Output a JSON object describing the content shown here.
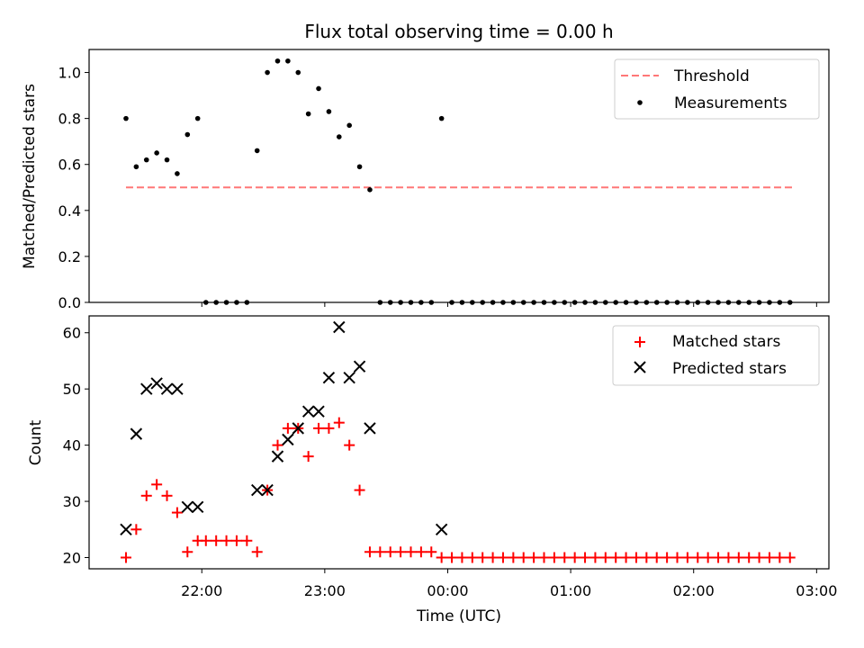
{
  "chart_data": [
    {
      "type": "scatter",
      "title": "Flux total observing time = 0.00 h",
      "ylabel": "Matched/Predicted stars",
      "xlabel": "",
      "xlim": [
        "21:05",
        "03:06"
      ],
      "ylim": [
        0,
        1.1
      ],
      "yticks": [
        0.0,
        0.2,
        0.4,
        0.6,
        0.8,
        1.0
      ],
      "ytick_labels": [
        "0.0",
        "0.2",
        "0.4",
        "0.6",
        "0.8",
        "1.0"
      ],
      "legend": {
        "placement": "top-right"
      },
      "threshold": {
        "name": "Threshold",
        "value": 0.5,
        "x_range": [
          "21:23",
          "02:49"
        ],
        "color": "#ff7777",
        "style": "dashed"
      },
      "series": [
        {
          "name": "Measurements",
          "color": "#000000",
          "marker": "dot",
          "x": [
            "21:23",
            "21:28",
            "21:33",
            "21:38",
            "21:43",
            "21:48",
            "21:53",
            "21:58",
            "22:02",
            "22:07",
            "22:12",
            "22:17",
            "22:22",
            "22:27",
            "22:32",
            "22:37",
            "22:42",
            "22:47",
            "22:52",
            "22:57",
            "23:02",
            "23:07",
            "23:12",
            "23:17",
            "23:22",
            "23:27",
            "23:32",
            "23:37",
            "23:42",
            "23:47",
            "23:52",
            "23:57",
            "00:02",
            "00:07",
            "00:12",
            "00:17",
            "00:22",
            "00:27",
            "00:32",
            "00:37",
            "00:42",
            "00:47",
            "00:52",
            "00:57",
            "01:02",
            "01:07",
            "01:12",
            "01:17",
            "01:22",
            "01:27",
            "01:32",
            "01:37",
            "01:42",
            "01:47",
            "01:52",
            "01:57",
            "02:02",
            "02:07",
            "02:12",
            "02:17",
            "02:22",
            "02:27",
            "02:32",
            "02:37",
            "02:42",
            "02:47"
          ],
          "y": [
            0.8,
            0.59,
            0.62,
            0.65,
            0.62,
            0.56,
            0.73,
            0.8,
            0.0,
            0.0,
            0.0,
            0.0,
            0.0,
            0.66,
            1.0,
            1.05,
            1.05,
            1.0,
            0.82,
            0.93,
            0.83,
            0.72,
            0.77,
            0.59,
            0.49,
            0.0,
            0.0,
            0.0,
            0.0,
            0.0,
            0.0,
            0.8,
            0.0,
            0.0,
            0.0,
            0.0,
            0.0,
            0.0,
            0.0,
            0.0,
            0.0,
            0.0,
            0.0,
            0.0,
            0.0,
            0.0,
            0.0,
            0.0,
            0.0,
            0.0,
            0.0,
            0.0,
            0.0,
            0.0,
            0.0,
            0.0,
            0.0,
            0.0,
            0.0,
            0.0,
            0.0,
            0.0,
            0.0,
            0.0,
            0.0,
            0.0
          ]
        }
      ]
    },
    {
      "type": "scatter",
      "title": "",
      "ylabel": "Count",
      "xlabel": "Time (UTC)",
      "xlim": [
        "21:05",
        "03:06"
      ],
      "ylim": [
        18,
        63
      ],
      "yticks": [
        20,
        30,
        40,
        50,
        60
      ],
      "ytick_labels": [
        "20",
        "30",
        "40",
        "50",
        "60"
      ],
      "xticks": [
        "22:00",
        "23:00",
        "00:00",
        "01:00",
        "02:00",
        "03:00"
      ],
      "xtick_labels": [
        "22:00",
        "23:00",
        "00:00",
        "01:00",
        "02:00",
        "03:00"
      ],
      "legend": {
        "placement": "top-right"
      },
      "series": [
        {
          "name": "Matched stars",
          "color": "#ff0000",
          "marker": "plus",
          "x": [
            "21:23",
            "21:28",
            "21:33",
            "21:38",
            "21:43",
            "21:48",
            "21:53",
            "21:58",
            "22:02",
            "22:07",
            "22:12",
            "22:17",
            "22:22",
            "22:27",
            "22:32",
            "22:37",
            "22:42",
            "22:47",
            "22:52",
            "22:57",
            "23:02",
            "23:07",
            "23:12",
            "23:17",
            "23:22",
            "23:27",
            "23:32",
            "23:37",
            "23:42",
            "23:47",
            "23:52",
            "23:57",
            "00:02",
            "00:07",
            "00:12",
            "00:17",
            "00:22",
            "00:27",
            "00:32",
            "00:37",
            "00:42",
            "00:47",
            "00:52",
            "00:57",
            "01:02",
            "01:07",
            "01:12",
            "01:17",
            "01:22",
            "01:27",
            "01:32",
            "01:37",
            "01:42",
            "01:47",
            "01:52",
            "01:57",
            "02:02",
            "02:07",
            "02:12",
            "02:17",
            "02:22",
            "02:27",
            "02:32",
            "02:37",
            "02:42",
            "02:47"
          ],
          "y": [
            20,
            25,
            31,
            33,
            31,
            28,
            21,
            23,
            23,
            23,
            23,
            23,
            23,
            21,
            32,
            40,
            43,
            43,
            38,
            43,
            43,
            44,
            40,
            32,
            21,
            21,
            21,
            21,
            21,
            21,
            21,
            20,
            20,
            20,
            20,
            20,
            20,
            20,
            20,
            20,
            20,
            20,
            20,
            20,
            20,
            20,
            20,
            20,
            20,
            20,
            20,
            20,
            20,
            20,
            20,
            20,
            20,
            20,
            20,
            20,
            20,
            20,
            20,
            20,
            20,
            20
          ]
        },
        {
          "name": "Predicted stars",
          "color": "#000000",
          "marker": "x",
          "x": [
            "21:23",
            "21:28",
            "21:33",
            "21:38",
            "21:43",
            "21:48",
            "21:53",
            "21:58",
            "22:27",
            "22:32",
            "22:37",
            "22:42",
            "22:47",
            "22:52",
            "22:57",
            "23:02",
            "23:07",
            "23:12",
            "23:17",
            "23:22",
            "23:57"
          ],
          "y": [
            25,
            42,
            50,
            51,
            50,
            50,
            29,
            29,
            32,
            32,
            38,
            41,
            43,
            46,
            46,
            52,
            61,
            52,
            54,
            43,
            25
          ]
        }
      ]
    }
  ]
}
